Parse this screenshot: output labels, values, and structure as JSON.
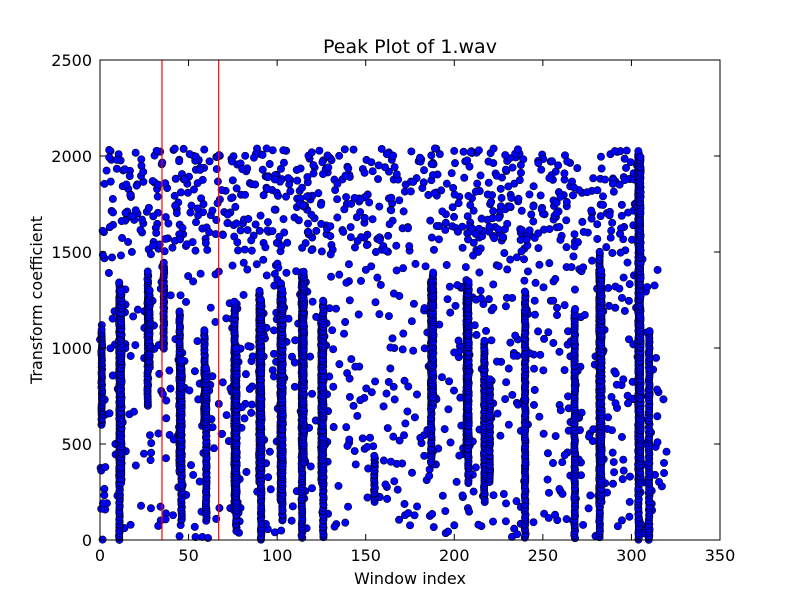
{
  "chart_data": {
    "type": "scatter",
    "title": "Peak Plot of 1.wav",
    "xlabel": "Window index",
    "ylabel": "Transform coefficient",
    "xlim": [
      0,
      350
    ],
    "ylim": [
      0,
      2500
    ],
    "xticks": [
      "0",
      "50",
      "100",
      "150",
      "200",
      "250",
      "300",
      "350"
    ],
    "yticks": [
      "0",
      "500",
      "1000",
      "1500",
      "2000",
      "2500"
    ],
    "grid": false,
    "legend": "none",
    "vlines": [
      35,
      67
    ],
    "colors": {
      "points": "#0000ff",
      "point_edge": "#000000",
      "vlines": "#ff0000",
      "axes": "#000000"
    },
    "point_generation": "approximate_sampled_cloud",
    "sampling": {
      "top_band_x_range": [
        0,
        305
      ],
      "top_band_y_range": [
        1500,
        2040
      ],
      "lower_cloud_x_range": [
        0,
        320
      ],
      "lower_cloud_y_range": [
        0,
        1500
      ]
    },
    "series": [
      {
        "dense_vertical_columns": [
          {
            "x": 1,
            "y": [
              600,
              1100
            ]
          },
          {
            "x": 11,
            "y": [
              0,
              1350
            ]
          },
          {
            "x": 12,
            "y": [
              300,
              1300
            ]
          },
          {
            "x": 27,
            "y": [
              700,
              1400
            ]
          },
          {
            "x": 28,
            "y": [
              900,
              1300
            ]
          },
          {
            "x": 36,
            "y": [
              1000,
              1450
            ]
          },
          {
            "x": 45,
            "y": [
              350,
              1200
            ]
          },
          {
            "x": 46,
            "y": [
              100,
              950
            ]
          },
          {
            "x": 59,
            "y": [
              600,
              1100
            ]
          },
          {
            "x": 60,
            "y": [
              100,
              900
            ]
          },
          {
            "x": 76,
            "y": [
              150,
              1250
            ]
          },
          {
            "x": 77,
            "y": [
              50,
              1000
            ]
          },
          {
            "x": 90,
            "y": [
              300,
              1300
            ]
          },
          {
            "x": 91,
            "y": [
              0,
              1250
            ]
          },
          {
            "x": 102,
            "y": [
              200,
              1350
            ]
          },
          {
            "x": 103,
            "y": [
              100,
              1300
            ]
          },
          {
            "x": 114,
            "y": [
              0,
              1400
            ]
          },
          {
            "x": 115,
            "y": [
              400,
              1400
            ]
          },
          {
            "x": 125,
            "y": [
              300,
              1150
            ]
          },
          {
            "x": 126,
            "y": [
              0,
              1250
            ]
          },
          {
            "x": 155,
            "y": [
              200,
              450
            ]
          },
          {
            "x": 187,
            "y": [
              400,
              1350
            ]
          },
          {
            "x": 188,
            "y": [
              700,
              1400
            ]
          },
          {
            "x": 207,
            "y": [
              450,
              1350
            ]
          },
          {
            "x": 208,
            "y": [
              300,
              1350
            ]
          },
          {
            "x": 217,
            "y": [
              200,
              1050
            ]
          },
          {
            "x": 220,
            "y": [
              300,
              850
            ]
          },
          {
            "x": 240,
            "y": [
              0,
              1300
            ]
          },
          {
            "x": 268,
            "y": [
              0,
              1200
            ]
          },
          {
            "x": 282,
            "y": [
              0,
              1500
            ]
          },
          {
            "x": 283,
            "y": [
              200,
              1400
            ]
          },
          {
            "x": 304,
            "y": [
              0,
              2030
            ]
          },
          {
            "x": 305,
            "y": [
              300,
              2000
            ]
          },
          {
            "x": 310,
            "y": [
              0,
              1100
            ]
          }
        ]
      }
    ]
  }
}
